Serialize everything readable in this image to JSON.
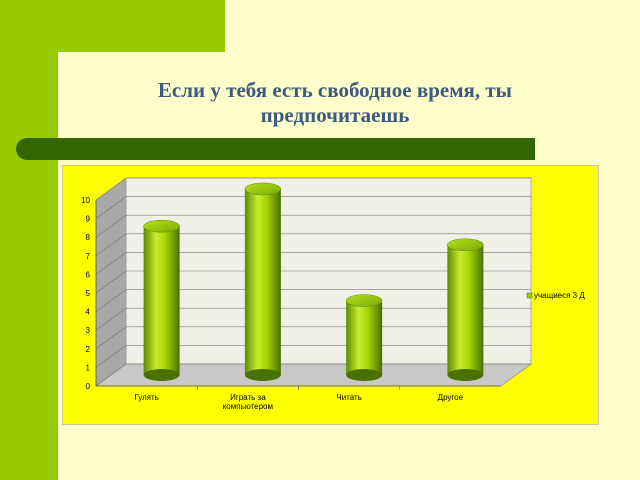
{
  "slide": {
    "title": "Если у тебя есть свободное время, ты предпочитаешь"
  },
  "chart_data": {
    "type": "bar",
    "categories": [
      "Гулять",
      "Играть за компьютером",
      "Читать",
      "Другое"
    ],
    "category_lines": [
      [
        "Гулять"
      ],
      [
        "Играть за",
        "компьютером"
      ],
      [
        "Читать"
      ],
      [
        "Другое"
      ]
    ],
    "series": [
      {
        "name": "учащиеся 3 Д",
        "values": [
          8,
          10,
          4,
          7
        ]
      }
    ],
    "title": "",
    "xlabel": "",
    "ylabel": "",
    "ylim": [
      0,
      10
    ],
    "yticks": [
      0,
      1,
      2,
      3,
      4,
      5,
      6,
      7,
      8,
      9,
      10
    ],
    "grid": true,
    "legend": "right",
    "colors": {
      "bar": "#99cc00",
      "bar_dark": "#4d7a00",
      "bar_light": "#d4f060",
      "chart_bg": "#ffff00",
      "wall": "#f0f0e8",
      "side_wall": "#a8a8a8",
      "floor": "#c8c8c8"
    }
  }
}
